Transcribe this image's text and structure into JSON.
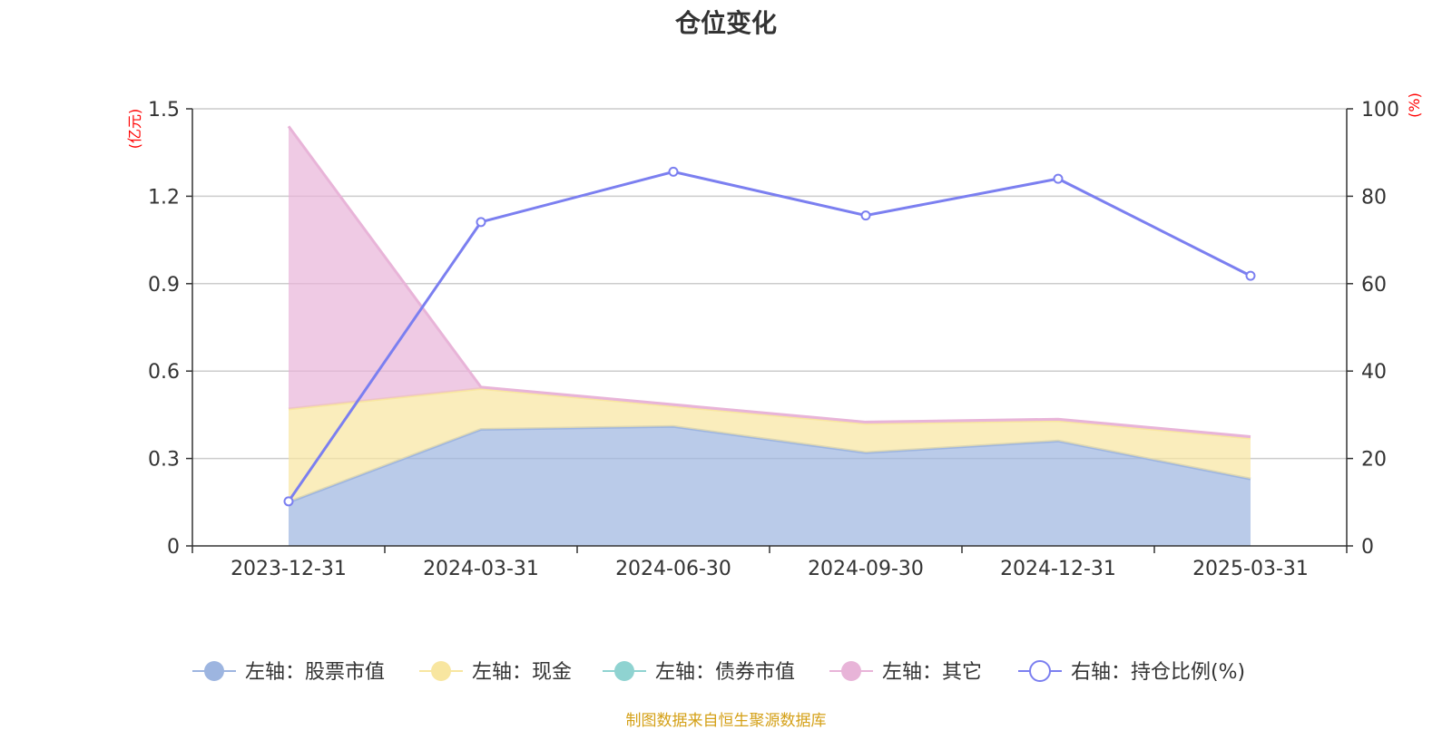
{
  "chart_data": {
    "type": "area",
    "title": "仓位变化",
    "categories": [
      "2023-12-31",
      "2024-03-31",
      "2024-06-30",
      "2024-09-30",
      "2024-12-31",
      "2025-03-31"
    ],
    "left_axis": {
      "unit": "(亿元)",
      "ylim": [
        0,
        1.5
      ],
      "ticks": [
        0,
        0.3,
        0.6,
        0.9,
        1.2,
        1.5
      ]
    },
    "right_axis": {
      "unit": "(%)",
      "ylim": [
        0,
        100
      ],
      "ticks": [
        0,
        20,
        40,
        60,
        80,
        100
      ]
    },
    "series": [
      {
        "name": "左轴：股票市值",
        "axis": "left",
        "stacked": true,
        "color": "#9db5e0",
        "values": [
          0.15,
          0.4,
          0.41,
          0.32,
          0.36,
          0.23
        ]
      },
      {
        "name": "左轴：现金",
        "axis": "left",
        "stacked": true,
        "color": "#f8e6a0",
        "values": [
          0.32,
          0.14,
          0.07,
          0.1,
          0.07,
          0.14
        ]
      },
      {
        "name": "左轴：债券市值",
        "axis": "left",
        "stacked": true,
        "color": "#8fd3d1",
        "values": [
          0,
          0,
          0,
          0,
          0,
          0
        ]
      },
      {
        "name": "左轴：其它",
        "axis": "left",
        "stacked": true,
        "color": "#e8b4d8",
        "values": [
          0.97,
          0.005,
          0.005,
          0.005,
          0.005,
          0.005
        ]
      },
      {
        "name": "右轴：持仓比例(%)",
        "axis": "right",
        "type": "line",
        "color": "#7b7ff0",
        "values": [
          10.2,
          74.1,
          85.6,
          75.6,
          84.0,
          61.8
        ]
      }
    ],
    "legend_position": "bottom-center"
  },
  "source_text": "制图数据来自恒生聚源数据库"
}
